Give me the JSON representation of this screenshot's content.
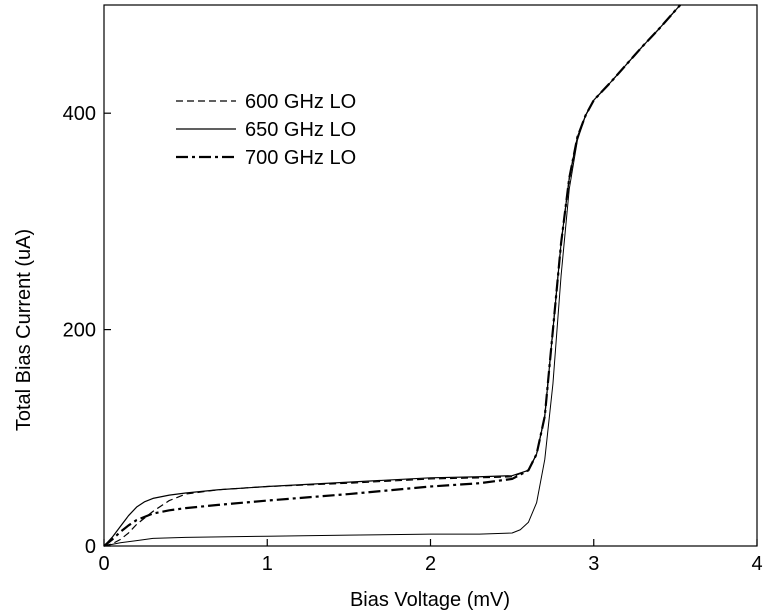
{
  "chart_data": {
    "type": "line",
    "title": "",
    "xlabel": "Bias Voltage (mV)",
    "ylabel": "Total Bias Current (uA)",
    "xlim": [
      0,
      4
    ],
    "ylim": [
      0,
      500
    ],
    "xticks": [
      0,
      1,
      2,
      3,
      4
    ],
    "yticks": [
      0,
      200,
      400
    ],
    "grid": false,
    "legend_position": "upper-left",
    "series": [
      {
        "name": "600 GHz LO",
        "style": "dashed",
        "color": "#000000",
        "x": [
          0,
          0.05,
          0.1,
          0.15,
          0.2,
          0.3,
          0.4,
          0.5,
          0.7,
          1.0,
          1.5,
          2.0,
          2.3,
          2.5,
          2.6,
          2.65,
          2.7,
          2.75,
          2.8,
          2.85,
          2.9,
          2.95,
          3.0,
          3.1,
          3.2,
          3.3,
          3.4,
          3.5,
          3.53
        ],
        "y": [
          0,
          2,
          6,
          12,
          20,
          32,
          42,
          48,
          52,
          55,
          58,
          62,
          63,
          64,
          70,
          85,
          120,
          200,
          280,
          340,
          378,
          398,
          412,
          428,
          445,
          462,
          478,
          495,
          500
        ]
      },
      {
        "name": "650 GHz LO",
        "style": "solid",
        "color": "#000000",
        "x": [
          0,
          0.05,
          0.1,
          0.15,
          0.2,
          0.25,
          0.3,
          0.4,
          0.5,
          0.7,
          1.0,
          1.5,
          2.0,
          2.3,
          2.5,
          2.6,
          2.65,
          2.7,
          2.75,
          2.8,
          2.85,
          2.9,
          2.95,
          3.0,
          3.1,
          3.2,
          3.3,
          3.4,
          3.5,
          3.53
        ],
        "y": [
          0,
          8,
          18,
          28,
          36,
          41,
          44,
          47,
          49,
          52,
          55,
          59,
          63,
          64,
          65,
          70,
          85,
          120,
          200,
          280,
          340,
          378,
          398,
          412,
          428,
          445,
          462,
          478,
          495,
          500
        ]
      },
      {
        "name": "",
        "style": "solid-thin",
        "color": "#000000",
        "x": [
          0,
          0.1,
          0.2,
          0.3,
          0.5,
          1.0,
          1.5,
          2.0,
          2.3,
          2.5,
          2.55,
          2.6,
          2.65,
          2.7,
          2.75,
          2.8,
          2.85,
          2.9,
          2.95,
          3.0
        ],
        "y": [
          0,
          3,
          5,
          7,
          8,
          9,
          10,
          11,
          11,
          12,
          15,
          22,
          40,
          80,
          150,
          250,
          330,
          375,
          398,
          412
        ]
      },
      {
        "name": "700 GHz LO",
        "style": "dashdot",
        "color": "#000000",
        "x": [
          0,
          0.05,
          0.1,
          0.15,
          0.2,
          0.3,
          0.4,
          0.5,
          0.7,
          1.0,
          1.5,
          2.0,
          2.3,
          2.5,
          2.6,
          2.65,
          2.7,
          2.75,
          2.8,
          2.85,
          2.9,
          2.95,
          3.0,
          3.1,
          3.2,
          3.3,
          3.4,
          3.5,
          3.53
        ],
        "y": [
          0,
          6,
          13,
          19,
          24,
          30,
          33,
          35,
          38,
          42,
          48,
          55,
          58,
          62,
          70,
          85,
          120,
          200,
          280,
          340,
          378,
          398,
          412,
          428,
          445,
          462,
          478,
          495,
          500
        ]
      }
    ]
  }
}
